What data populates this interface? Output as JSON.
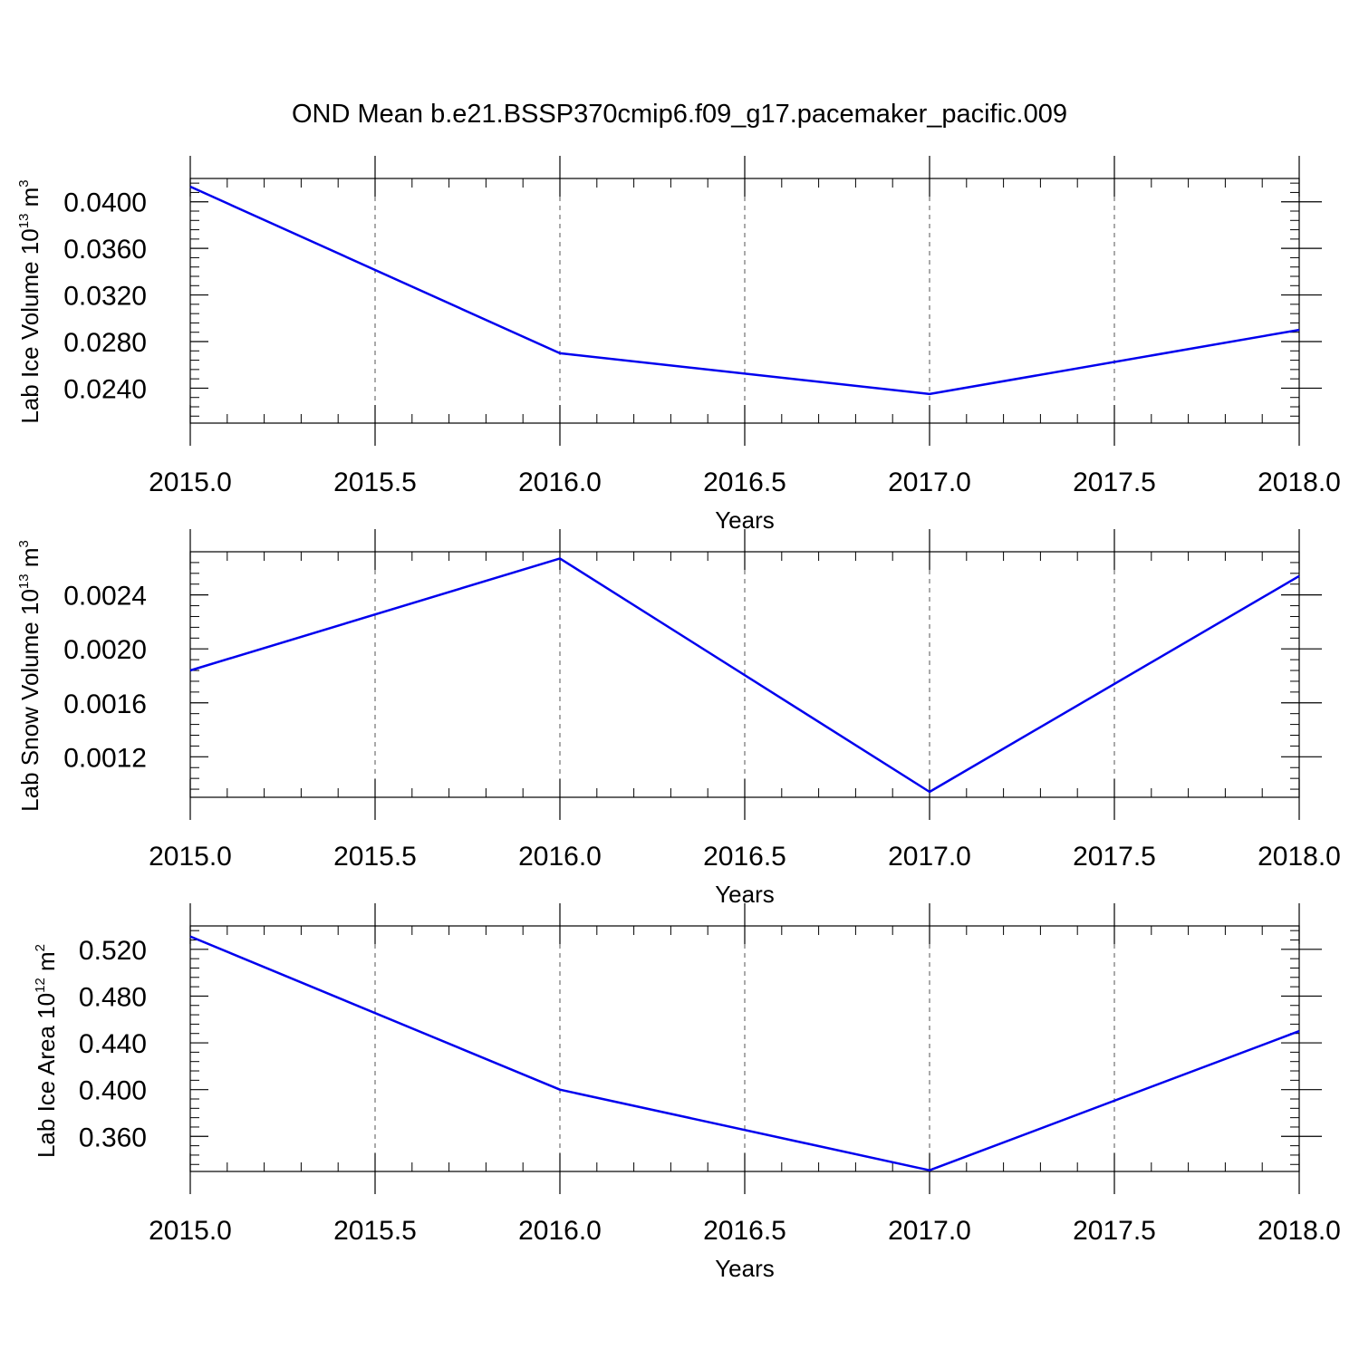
{
  "title": "OND Mean b.e21.BSSP370cmip6.f09_g17.pacemaker_pacific.009",
  "colors": {
    "line": "#0000ee",
    "axis": "#000000",
    "grid": "#555555"
  },
  "chart_data": [
    {
      "type": "line",
      "x": [
        2015.0,
        2016.0,
        2017.0,
        2018.0
      ],
      "series": [
        {
          "values": [
            0.0413,
            0.027,
            0.0235,
            0.029
          ]
        }
      ],
      "xlabel": "Years",
      "ylabel": {
        "main": "Lab Ice Volume 10",
        "exp": "13",
        "unit": " m",
        "unit_exp": "3"
      },
      "xlim": [
        2015.0,
        2018.0
      ],
      "ylim": [
        0.021,
        0.042
      ],
      "x_ticks": [
        2015.0,
        2015.5,
        2016.0,
        2016.5,
        2017.0,
        2017.5,
        2018.0
      ],
      "x_tick_labels": [
        "2015.0",
        "2015.5",
        "2016.0",
        "2016.5",
        "2017.0",
        "2017.5",
        "2018.0"
      ],
      "y_ticks": [
        0.024,
        0.028,
        0.032,
        0.036,
        0.04
      ],
      "y_tick_labels": [
        "0.0240",
        "0.0280",
        "0.0320",
        "0.0360",
        "0.0400"
      ],
      "grid": "vertical dashed at major x ticks"
    },
    {
      "type": "line",
      "x": [
        2015.0,
        2016.0,
        2017.0,
        2018.0
      ],
      "series": [
        {
          "values": [
            0.00184,
            0.00267,
            0.00094,
            0.00254
          ]
        }
      ],
      "xlabel": "Years",
      "ylabel": {
        "main": "Lab Snow Volume 10",
        "exp": "13",
        "unit": " m",
        "unit_exp": "3"
      },
      "xlim": [
        2015.0,
        2018.0
      ],
      "ylim": [
        0.0009,
        0.00272
      ],
      "x_ticks": [
        2015.0,
        2015.5,
        2016.0,
        2016.5,
        2017.0,
        2017.5,
        2018.0
      ],
      "x_tick_labels": [
        "2015.0",
        "2015.5",
        "2016.0",
        "2016.5",
        "2017.0",
        "2017.5",
        "2018.0"
      ],
      "y_ticks": [
        0.0012,
        0.0016,
        0.002,
        0.0024
      ],
      "y_tick_labels": [
        "0.0012",
        "0.0016",
        "0.0020",
        "0.0024"
      ],
      "grid": "vertical dashed at major x ticks"
    },
    {
      "type": "line",
      "x": [
        2015.0,
        2016.0,
        2017.0,
        2018.0
      ],
      "series": [
        {
          "values": [
            0.531,
            0.4,
            0.331,
            0.45
          ]
        }
      ],
      "xlabel": "Years",
      "ylabel": {
        "main": "Lab Ice Area 10",
        "exp": "12",
        "unit": " m",
        "unit_exp": "2"
      },
      "xlim": [
        2015.0,
        2018.0
      ],
      "ylim": [
        0.33,
        0.54
      ],
      "x_ticks": [
        2015.0,
        2015.5,
        2016.0,
        2016.5,
        2017.0,
        2017.5,
        2018.0
      ],
      "x_tick_labels": [
        "2015.0",
        "2015.5",
        "2016.0",
        "2016.5",
        "2017.0",
        "2017.5",
        "2018.0"
      ],
      "y_ticks": [
        0.36,
        0.4,
        0.44,
        0.48,
        0.52
      ],
      "y_tick_labels": [
        "0.360",
        "0.400",
        "0.440",
        "0.480",
        "0.520"
      ],
      "grid": "vertical dashed at major x ticks"
    }
  ]
}
